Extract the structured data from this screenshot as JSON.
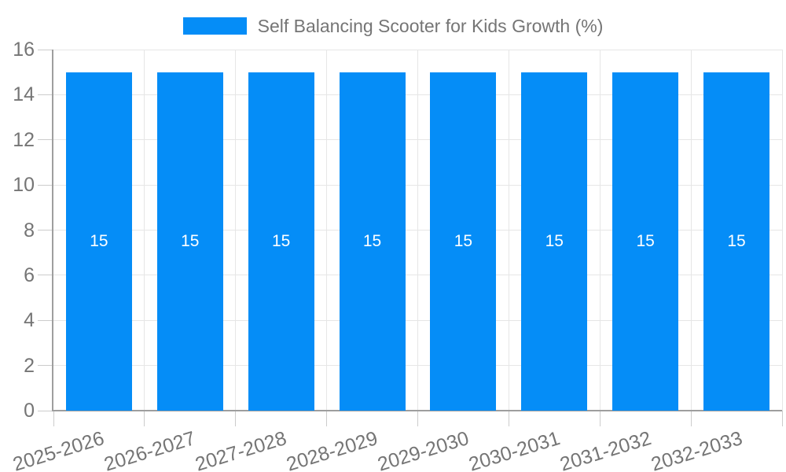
{
  "chart_data": {
    "type": "bar",
    "title": "Self Balancing Scooter for Kids Growth (%)",
    "legend": {
      "label": "Self Balancing Scooter for Kids Growth (%)",
      "position": "top-center"
    },
    "categories": [
      "2025-2026",
      "2026-2027",
      "2027-2028",
      "2028-2029",
      "2029-2030",
      "2030-2031",
      "2031-2032",
      "2032-2033"
    ],
    "series": [
      {
        "name": "Self Balancing Scooter for Kids Growth (%)",
        "values": [
          15,
          15,
          15,
          15,
          15,
          15,
          15,
          15
        ]
      }
    ],
    "value_labels_visible": true,
    "xlabel": "",
    "ylabel": "",
    "ylim": [
      0,
      16
    ],
    "ytick_step": 2,
    "yticks": [
      0,
      2,
      4,
      6,
      8,
      10,
      12,
      14,
      16
    ],
    "grid": {
      "horizontal": true,
      "vertical": true
    },
    "x_label_rotation_deg": -17,
    "colors": {
      "bar": "#058DF7",
      "grid_line": "#E6E6E6",
      "axis_line": "#9E9E9E",
      "tick_line": "#CCCCCC",
      "tick_label": "#757575",
      "legend_text": "#757575",
      "bar_value_label": "#FFFFFF",
      "background": "#FFFFFF"
    }
  }
}
